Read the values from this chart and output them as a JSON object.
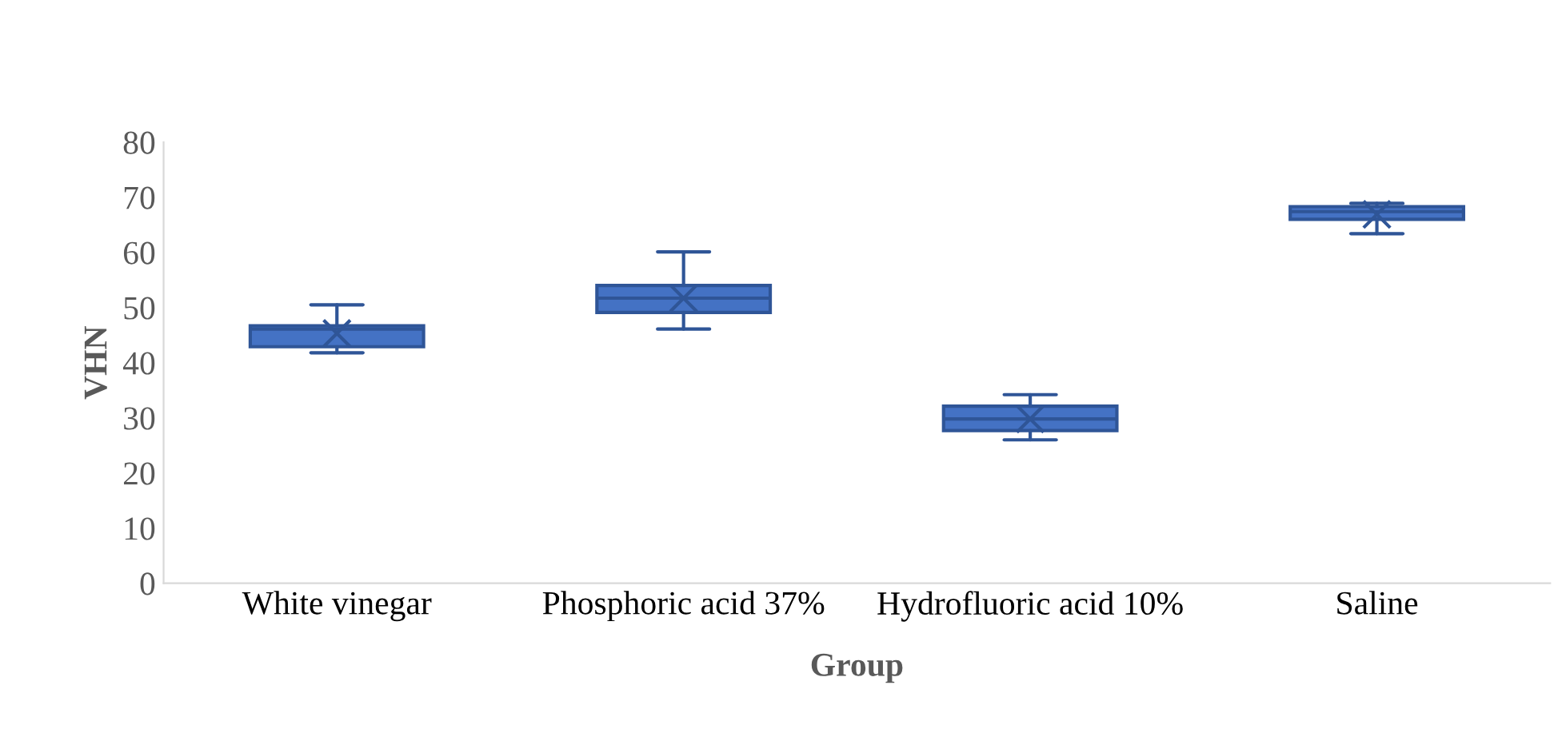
{
  "chart_data": {
    "type": "box",
    "xlabel": "Group",
    "ylabel": "VHN",
    "categories": [
      "White vinegar",
      "Phosphoric acid 37%",
      "Hydrofluoric acid 10%",
      "Saline"
    ],
    "color": "#4472c4",
    "boxes": [
      {
        "low": 41.8,
        "q1": 42.9,
        "median": 46.1,
        "q3": 46.7,
        "high": 50.5,
        "mean": 45.3
      },
      {
        "low": 46.1,
        "q1": 49.1,
        "median": 51.7,
        "q3": 54.0,
        "high": 60.1,
        "mean": 51.7
      },
      {
        "low": 26.0,
        "q1": 27.7,
        "median": 29.8,
        "q3": 32.1,
        "high": 34.2,
        "mean": 29.8
      },
      {
        "low": 63.4,
        "q1": 66.0,
        "median": 67.4,
        "q3": 68.3,
        "high": 68.9,
        "mean": 66.9
      }
    ],
    "ylim": [
      0,
      80
    ],
    "yticks": [
      0,
      10,
      20,
      30,
      40,
      50,
      60,
      70,
      80
    ],
    "grid": false,
    "marker": "cross"
  }
}
